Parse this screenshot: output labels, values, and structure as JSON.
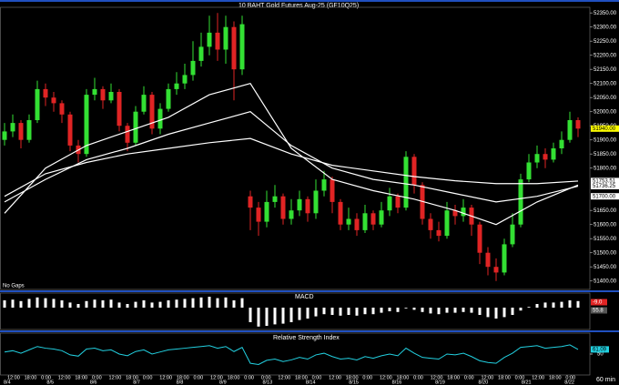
{
  "chart_data": {
    "type": "candlestick",
    "title": "10 BAHT  Gold Futures Aug-25 (GF10Q25)",
    "note": "No Gaps",
    "interval_label": "60 min",
    "up_color": "#33e033",
    "down_color": "#e02424",
    "ylim": [
      51370,
      52370
    ],
    "yticks": [
      {
        "value": 52350,
        "label": "52350.00"
      },
      {
        "value": 52300,
        "label": "52300.00"
      },
      {
        "value": 52250,
        "label": "52250.00"
      },
      {
        "value": 52200,
        "label": "52200.00"
      },
      {
        "value": 52150,
        "label": "52150.00"
      },
      {
        "value": 52100,
        "label": "52100.00"
      },
      {
        "value": 52050,
        "label": "52050.00"
      },
      {
        "value": 52000,
        "label": "52000.00"
      },
      {
        "value": 51950,
        "label": "51950.00"
      },
      {
        "value": 51900,
        "label": "51900.00"
      },
      {
        "value": 51850,
        "label": "51850.00"
      },
      {
        "value": 51800,
        "label": "51800.00"
      },
      {
        "value": 51650,
        "label": "51650.00"
      },
      {
        "value": 51600,
        "label": "51600.00"
      },
      {
        "value": 51550,
        "label": "51550.00"
      },
      {
        "value": 51500,
        "label": "51500.00"
      },
      {
        "value": 51450,
        "label": "51450.00"
      },
      {
        "value": 51400,
        "label": "51400.00"
      }
    ],
    "price_tags": [
      {
        "value": 51940,
        "label": "51940.00",
        "color": "#ffff00"
      },
      {
        "value": 51754.26,
        "label": "51754.26",
        "color": "#ffffff"
      },
      {
        "value": 51753.51,
        "label": "51753.51",
        "color": "#ffffff"
      },
      {
        "value": 51736.25,
        "label": "51736.25",
        "color": "#ffffff"
      },
      {
        "value": 51700,
        "label": "51700.00",
        "color": "#ffffff"
      }
    ],
    "candles": [
      [
        51900,
        51960,
        51880,
        51930
      ],
      [
        51930,
        51990,
        51910,
        51960
      ],
      [
        51960,
        51970,
        51870,
        51900
      ],
      [
        51900,
        51990,
        51890,
        51970
      ],
      [
        51970,
        52110,
        51960,
        52080
      ],
      [
        52080,
        52100,
        52020,
        52050
      ],
      [
        52050,
        52070,
        52000,
        52030
      ],
      [
        52030,
        52040,
        51960,
        51990
      ],
      [
        51990,
        52000,
        51860,
        51880
      ],
      [
        51880,
        51900,
        51820,
        51850
      ],
      [
        51850,
        52080,
        51840,
        52060
      ],
      [
        52060,
        52120,
        52040,
        52080
      ],
      [
        52080,
        52090,
        52010,
        52040
      ],
      [
        52040,
        52100,
        52030,
        52070
      ],
      [
        52070,
        52080,
        51930,
        51950
      ],
      [
        51950,
        51960,
        51860,
        51890
      ],
      [
        51890,
        52020,
        51880,
        52000
      ],
      [
        52000,
        52090,
        51990,
        52060
      ],
      [
        52060,
        52070,
        51920,
        51940
      ],
      [
        51940,
        52030,
        51920,
        52010
      ],
      [
        52010,
        52100,
        52000,
        52080
      ],
      [
        52080,
        52140,
        52060,
        52100
      ],
      [
        52100,
        52170,
        52080,
        52130
      ],
      [
        52130,
        52250,
        52110,
        52180
      ],
      [
        52180,
        52280,
        52160,
        52230
      ],
      [
        52230,
        52340,
        52200,
        52280
      ],
      [
        52280,
        52350,
        52180,
        52220
      ],
      [
        52220,
        52340,
        52170,
        52300
      ],
      [
        52300,
        52320,
        52040,
        52150
      ],
      [
        52150,
        52340,
        52130,
        52310
      ],
      [
        51700,
        51720,
        51580,
        51660
      ],
      [
        51660,
        51680,
        51560,
        51610
      ],
      [
        51610,
        51720,
        51590,
        51680
      ],
      [
        51680,
        51740,
        51660,
        51700
      ],
      [
        51700,
        51710,
        51600,
        51620
      ],
      [
        51620,
        51690,
        51600,
        51650
      ],
      [
        51650,
        51720,
        51630,
        51690
      ],
      [
        51690,
        51700,
        51610,
        51640
      ],
      [
        51640,
        51760,
        51620,
        51720
      ],
      [
        51720,
        51790,
        51700,
        51760
      ],
      [
        51760,
        51770,
        51640,
        51680
      ],
      [
        51680,
        51690,
        51580,
        51600
      ],
      [
        51600,
        51660,
        51580,
        51620
      ],
      [
        51620,
        51640,
        51560,
        51580
      ],
      [
        51580,
        51670,
        51570,
        51640
      ],
      [
        51640,
        51650,
        51580,
        51600
      ],
      [
        51600,
        51680,
        51590,
        51650
      ],
      [
        51650,
        51730,
        51630,
        51700
      ],
      [
        51700,
        51710,
        51640,
        51660
      ],
      [
        51660,
        51860,
        51650,
        51840
      ],
      [
        51840,
        51850,
        51710,
        51740
      ],
      [
        51740,
        51750,
        51600,
        51620
      ],
      [
        51620,
        51640,
        51550,
        51580
      ],
      [
        51580,
        51610,
        51540,
        51560
      ],
      [
        51560,
        51680,
        51550,
        51650
      ],
      [
        51650,
        51670,
        51600,
        51630
      ],
      [
        51630,
        51690,
        51610,
        51660
      ],
      [
        51660,
        51670,
        51560,
        51600
      ],
      [
        51600,
        51610,
        51460,
        51500
      ],
      [
        51500,
        51520,
        51420,
        51450
      ],
      [
        51450,
        51480,
        51400,
        51430
      ],
      [
        51430,
        51550,
        51420,
        51530
      ],
      [
        51530,
        51640,
        51520,
        51600
      ],
      [
        51600,
        51780,
        51590,
        51760
      ],
      [
        51760,
        51850,
        51750,
        51820
      ],
      [
        51820,
        51880,
        51800,
        51850
      ],
      [
        51850,
        51870,
        51800,
        51830
      ],
      [
        51830,
        51890,
        51820,
        51870
      ],
      [
        51870,
        51930,
        51850,
        51900
      ],
      [
        51900,
        52000,
        51890,
        51970
      ],
      [
        51970,
        51980,
        51910,
        51940
      ]
    ],
    "moving_averages": [
      {
        "color": "#ffffff",
        "x": [
          0,
          5,
          10,
          15,
          20,
          25,
          30,
          35,
          40,
          45,
          50,
          55,
          60,
          65,
          70
        ],
        "values": [
          51640,
          51800,
          51880,
          51930,
          51980,
          52060,
          52100,
          51870,
          51760,
          51720,
          51690,
          51650,
          51600,
          51680,
          51740
        ]
      },
      {
        "color": "#ffffff",
        "x": [
          0,
          5,
          10,
          15,
          20,
          25,
          30,
          35,
          40,
          45,
          50,
          55,
          60,
          65,
          70
        ],
        "values": [
          51680,
          51760,
          51830,
          51870,
          51920,
          51960,
          52000,
          51880,
          51800,
          51760,
          51740,
          51710,
          51680,
          51700,
          51736
        ]
      },
      {
        "color": "#ffffff",
        "x": [
          0,
          5,
          10,
          15,
          20,
          25,
          30,
          35,
          40,
          45,
          50,
          55,
          60,
          65,
          70
        ],
        "values": [
          51700,
          51780,
          51820,
          51850,
          51870,
          51890,
          51905,
          51850,
          51810,
          51790,
          51770,
          51755,
          51745,
          51745,
          51754
        ]
      }
    ],
    "macd": {
      "title": "MACD",
      "color": "#ffffff",
      "ylim": [
        -60,
        40
      ],
      "tags": [
        "-9.0",
        "55.8"
      ],
      "values": [
        20,
        22,
        18,
        24,
        28,
        26,
        24,
        20,
        14,
        10,
        18,
        22,
        20,
        22,
        14,
        10,
        16,
        20,
        14,
        16,
        20,
        22,
        24,
        26,
        28,
        30,
        26,
        28,
        20,
        26,
        -40,
        -52,
        -50,
        -46,
        -44,
        -40,
        -34,
        -30,
        -24,
        -18,
        -20,
        -22,
        -20,
        -22,
        -18,
        -18,
        -14,
        -10,
        -12,
        -2,
        -6,
        -12,
        -16,
        -18,
        -14,
        -14,
        -12,
        -14,
        -20,
        -26,
        -30,
        -26,
        -20,
        -8,
        2,
        10,
        14,
        14,
        16,
        20,
        18
      ]
    },
    "rsi": {
      "title": "Relative Strength Index",
      "color": "#22d0e0",
      "ylim": [
        0,
        100
      ],
      "yticks": [
        50
      ],
      "tag": {
        "value": 61.09,
        "label": "61.09"
      },
      "values": [
        55,
        58,
        52,
        60,
        68,
        64,
        62,
        58,
        48,
        45,
        62,
        64,
        58,
        60,
        50,
        46,
        56,
        60,
        50,
        55,
        60,
        62,
        64,
        66,
        68,
        70,
        64,
        68,
        56,
        66,
        28,
        25,
        35,
        38,
        32,
        36,
        42,
        38,
        48,
        52,
        44,
        38,
        40,
        36,
        44,
        40,
        46,
        50,
        46,
        64,
        52,
        42,
        40,
        38,
        50,
        48,
        52,
        44,
        34,
        30,
        28,
        42,
        52,
        66,
        68,
        70,
        64,
        66,
        68,
        72,
        61.09
      ]
    },
    "time_labels": [
      "12:00",
      "18:00",
      "0:00",
      "12:00",
      "18:00",
      "0:00",
      "12:00",
      "18:00",
      "0:00",
      "12:00",
      "18:00",
      "0:00",
      "12:00",
      "18:00",
      "0:00",
      "0:00",
      "12:00",
      "18:00",
      "0:00",
      "12:00",
      "18:00",
      "0:00",
      "12:00",
      "18:00",
      "0:00",
      "12:00",
      "18:00",
      "0:00",
      "12:00",
      "18:00",
      "0:00",
      "12:00",
      "18:00",
      "0:00"
    ],
    "date_labels": [
      "8/4",
      "8/5",
      "8/6",
      "8/7",
      "8/8",
      "8/9",
      "8/13",
      "8/14",
      "8/15",
      "8/16",
      "8/19",
      "8/20",
      "8/21",
      "8/22"
    ]
  }
}
